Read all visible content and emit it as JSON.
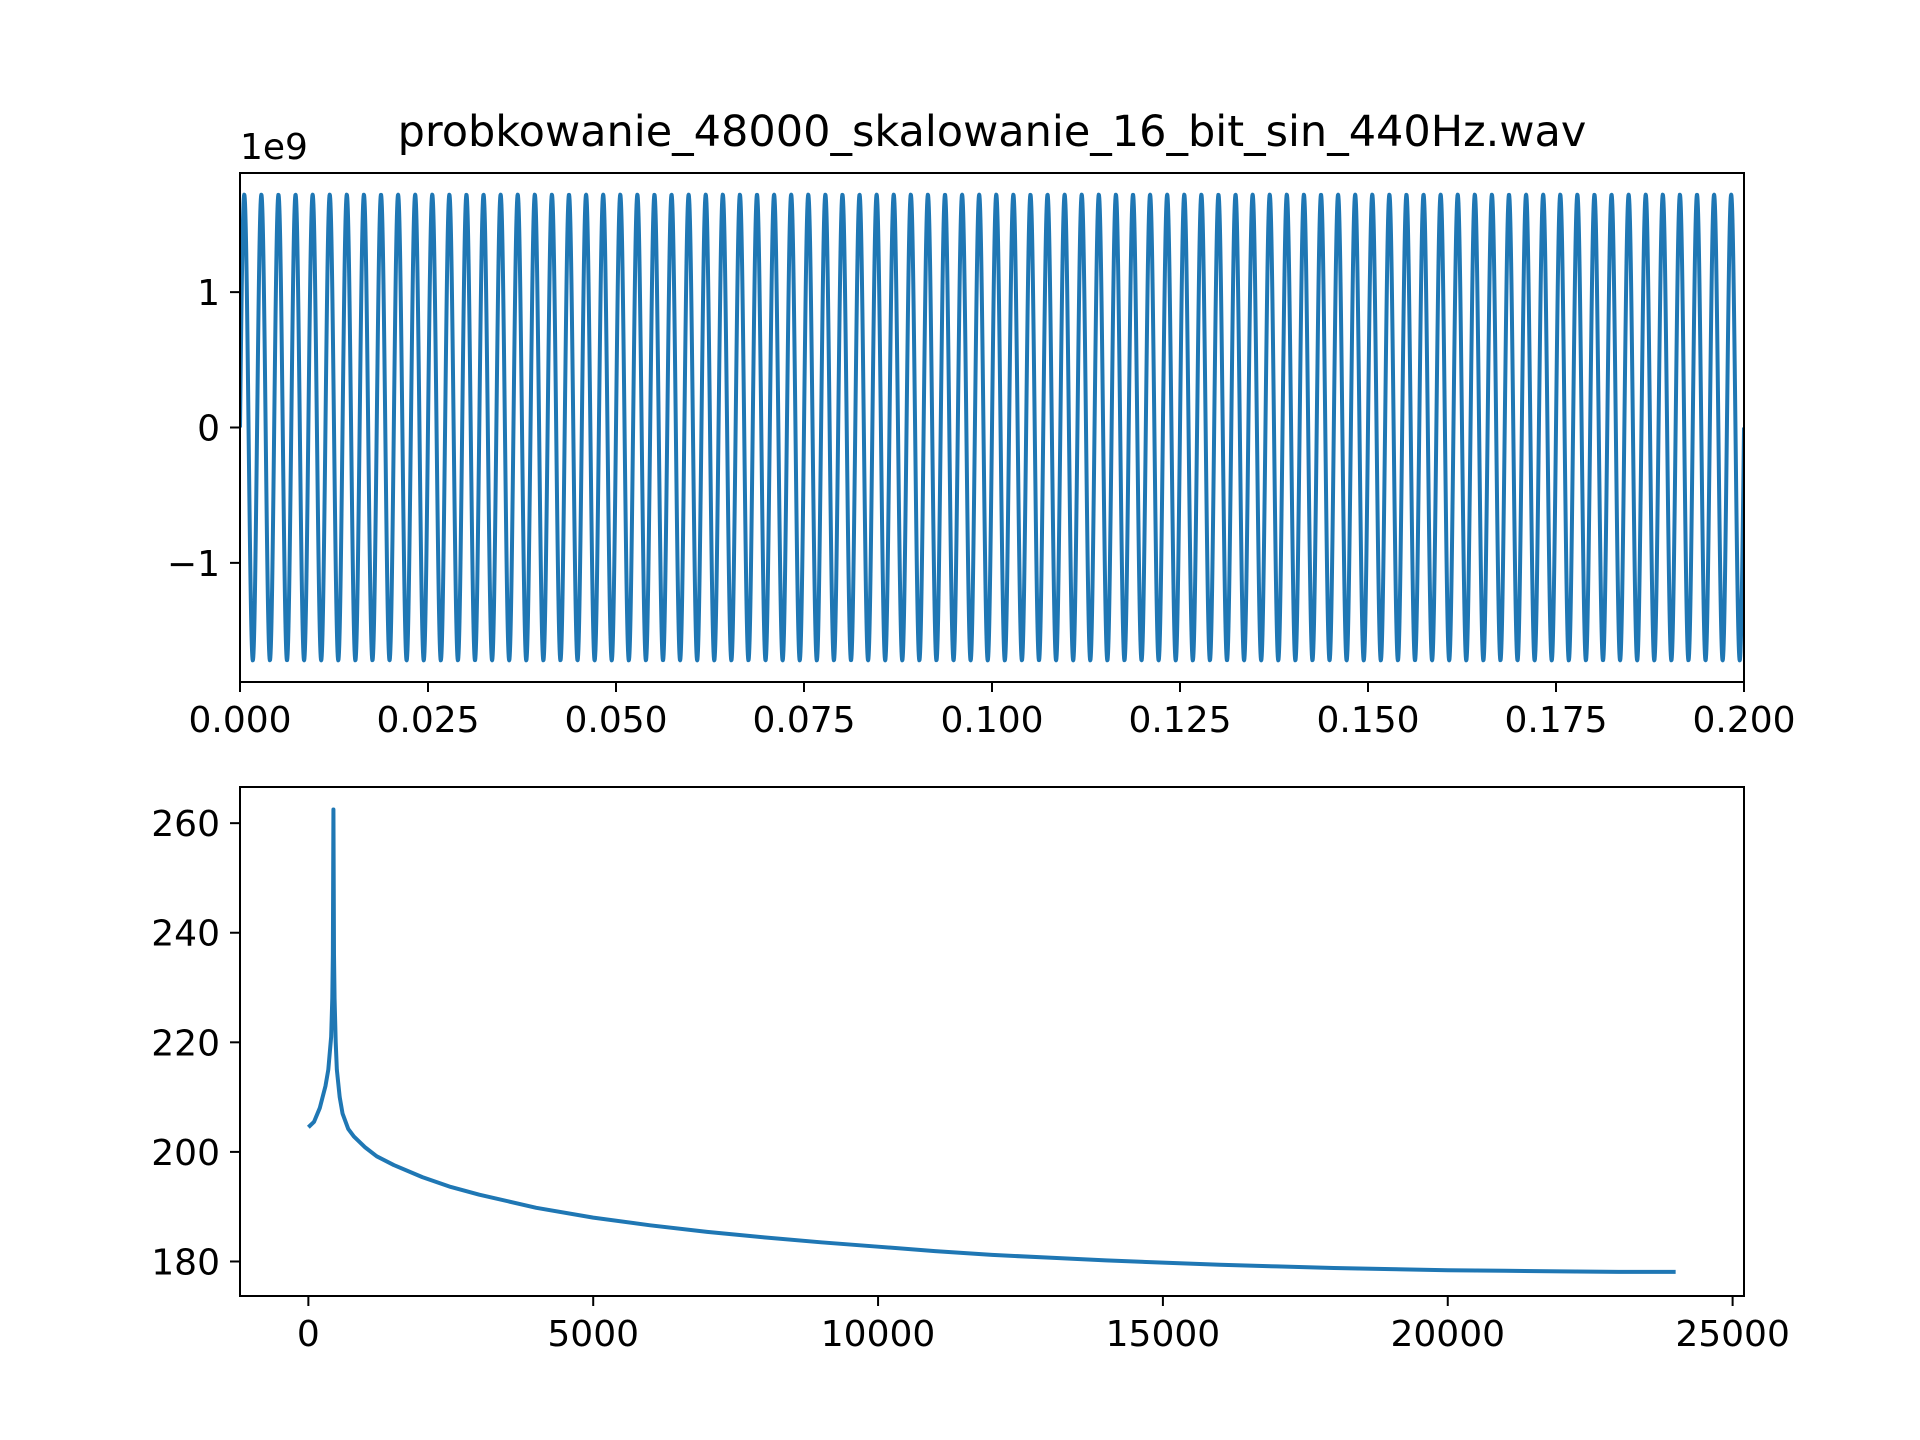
{
  "chart_data": [
    {
      "type": "line",
      "title": "probkowanie_48000_skalowanie_16_bit_sin_440Hz.wav",
      "xlabel": "",
      "ylabel": "",
      "offset_text": "1e9",
      "xlim": [
        0.0,
        0.2
      ],
      "ylim": [
        -1.88,
        1.88
      ],
      "xticks": [
        "0.000",
        "0.025",
        "0.050",
        "0.075",
        "0.100",
        "0.125",
        "0.150",
        "0.175",
        "0.200"
      ],
      "xtick_values": [
        0.0,
        0.025,
        0.05,
        0.075,
        0.1,
        0.125,
        0.15,
        0.175,
        0.2
      ],
      "yticks": [
        "−1",
        "0",
        "1"
      ],
      "ytick_values": [
        -1,
        0,
        1
      ],
      "grid": false,
      "series": [
        {
          "color": "#1f77b4",
          "function": "sine",
          "frequency_hz": 440,
          "amplitude": 1.72,
          "x_start": 0.0,
          "x_end": 0.2
        }
      ]
    },
    {
      "type": "line",
      "title": "",
      "xlabel": "",
      "ylabel": "",
      "xlim": [
        -1200,
        25200
      ],
      "ylim": [
        173.7,
        266.6
      ],
      "xticks": [
        "0",
        "5000",
        "10000",
        "15000",
        "20000",
        "25000"
      ],
      "xtick_values": [
        0,
        5000,
        10000,
        15000,
        20000,
        25000
      ],
      "yticks": [
        "180",
        "200",
        "220",
        "240",
        "260"
      ],
      "ytick_values": [
        180,
        200,
        220,
        240,
        260
      ],
      "grid": false,
      "series": [
        {
          "color": "#1f77b4",
          "x": [
            0,
            100,
            200,
            300,
            350,
            400,
            420,
            430,
            440,
            450,
            460,
            480,
            500,
            550,
            600,
            700,
            800,
            1000,
            1200,
            1500,
            2000,
            2500,
            3000,
            4000,
            5000,
            6000,
            7000,
            8000,
            9000,
            10000,
            11000,
            12000,
            13000,
            14000,
            15000,
            16000,
            17000,
            18000,
            19000,
            20000,
            21000,
            22000,
            23000,
            24000
          ],
          "y": [
            204.5,
            205.5,
            208.0,
            212.0,
            215.0,
            221.0,
            228.0,
            236.0,
            262.5,
            236.0,
            228.0,
            220.0,
            215.0,
            210.0,
            207.0,
            204.2,
            202.8,
            200.8,
            199.2,
            197.6,
            195.4,
            193.6,
            192.2,
            189.8,
            188.0,
            186.6,
            185.4,
            184.4,
            183.5,
            182.7,
            181.9,
            181.2,
            180.7,
            180.2,
            179.8,
            179.4,
            179.1,
            178.8,
            178.6,
            178.4,
            178.3,
            178.2,
            178.1,
            178.1
          ]
        }
      ]
    }
  ]
}
